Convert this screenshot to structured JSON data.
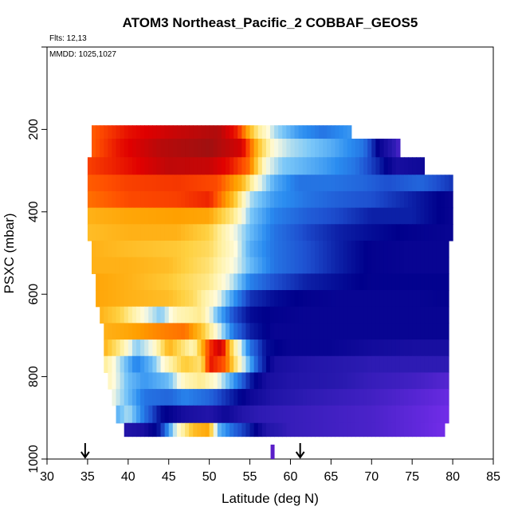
{
  "chart_data": {
    "type": "heatmap",
    "title": "ATOM3 Northeast_Pacific_2 COBBAF_GEOS5",
    "flights_note": "Flts: 12,13",
    "dates_note": "MMDD: 1025,1027",
    "xlabel": "Latitude (deg N)",
    "ylabel": "PSXC (mbar)",
    "xlim": [
      30,
      85
    ],
    "ylim": [
      1000,
      0
    ],
    "x_ticks": [
      "30",
      "35",
      "40",
      "45",
      "50",
      "55",
      "60",
      "65",
      "70",
      "75",
      "80",
      "85"
    ],
    "y_ticks": [
      "200",
      "400",
      "600",
      "800",
      "1000"
    ],
    "x_tick_values": [
      30,
      35,
      40,
      45,
      50,
      55,
      60,
      65,
      70,
      75,
      80,
      85
    ],
    "y_tick_values": [
      200,
      400,
      600,
      800,
      1000
    ],
    "grid": false,
    "colormap": [
      "#7b2ff0",
      "#2a1ab0",
      "#00008b",
      "#1e50d0",
      "#2a8cf0",
      "#7cc8f8",
      "#fffce0",
      "#fff0a0",
      "#ffd040",
      "#ffa000",
      "#ff5000",
      "#e00000",
      "#a01010"
    ],
    "colorscale_min": 0,
    "colorscale_max": 1,
    "rows": [
      {
        "p": 200,
        "x0": 35.5,
        "x1": 67.5,
        "stops": [
          [
            35.5,
            0.82
          ],
          [
            40,
            0.9
          ],
          [
            46,
            0.95
          ],
          [
            51,
            0.98
          ],
          [
            53.5,
            0.88
          ],
          [
            56,
            0.6
          ],
          [
            58,
            0.45
          ],
          [
            61,
            0.35
          ],
          [
            64,
            0.3
          ],
          [
            67.5,
            0.35
          ]
        ]
      },
      {
        "p": 245,
        "x0": 35.5,
        "x1": 73.5,
        "stops": [
          [
            35.5,
            0.82
          ],
          [
            39,
            0.9
          ],
          [
            44,
            0.97
          ],
          [
            50,
            1.0
          ],
          [
            54,
            0.93
          ],
          [
            56,
            0.7
          ],
          [
            58,
            0.5
          ],
          [
            60,
            0.45
          ],
          [
            65,
            0.38
          ],
          [
            69,
            0.3
          ],
          [
            71,
            0.15
          ],
          [
            73.5,
            0.05
          ]
        ]
      },
      {
        "p": 290,
        "x0": 35,
        "x1": 76.5,
        "stops": [
          [
            35,
            0.85
          ],
          [
            40,
            0.9
          ],
          [
            45,
            0.96
          ],
          [
            50,
            0.95
          ],
          [
            52.5,
            0.9
          ],
          [
            55,
            0.8
          ],
          [
            57,
            0.5
          ],
          [
            59,
            0.42
          ],
          [
            64,
            0.36
          ],
          [
            68,
            0.3
          ],
          [
            71,
            0.2
          ],
          [
            73,
            0.12
          ],
          [
            76.5,
            0.14
          ]
        ]
      },
      {
        "p": 330,
        "x0": 35,
        "x1": 80,
        "stops": [
          [
            35,
            0.82
          ],
          [
            40,
            0.85
          ],
          [
            46,
            0.86
          ],
          [
            51,
            0.84
          ],
          [
            54,
            0.72
          ],
          [
            56,
            0.5
          ],
          [
            58,
            0.38
          ],
          [
            61,
            0.3
          ],
          [
            65,
            0.3
          ],
          [
            69,
            0.28
          ],
          [
            72,
            0.25
          ],
          [
            76,
            0.28
          ],
          [
            80,
            0.22
          ]
        ]
      },
      {
        "p": 370,
        "x0": 35,
        "x1": 80,
        "stops": [
          [
            35,
            0.8
          ],
          [
            40,
            0.84
          ],
          [
            46,
            0.85
          ],
          [
            50,
            0.88
          ],
          [
            53,
            0.7
          ],
          [
            55,
            0.45
          ],
          [
            58,
            0.35
          ],
          [
            62,
            0.3
          ],
          [
            66,
            0.27
          ],
          [
            70,
            0.25
          ],
          [
            75,
            0.2
          ],
          [
            80,
            0.15
          ]
        ]
      },
      {
        "p": 410,
        "x0": 35,
        "x1": 80,
        "stops": [
          [
            35,
            0.72
          ],
          [
            40,
            0.74
          ],
          [
            46,
            0.75
          ],
          [
            50,
            0.74
          ],
          [
            53,
            0.6
          ],
          [
            55,
            0.42
          ],
          [
            58,
            0.32
          ],
          [
            62,
            0.27
          ],
          [
            66,
            0.24
          ],
          [
            70,
            0.2
          ],
          [
            75,
            0.2
          ],
          [
            80,
            0.15
          ]
        ]
      },
      {
        "p": 450,
        "x0": 35,
        "x1": 80,
        "stops": [
          [
            35,
            0.7
          ],
          [
            40,
            0.72
          ],
          [
            46,
            0.72
          ],
          [
            50,
            0.66
          ],
          [
            53,
            0.5
          ],
          [
            55,
            0.4
          ],
          [
            58,
            0.3
          ],
          [
            62,
            0.24
          ],
          [
            66,
            0.2
          ],
          [
            70,
            0.18
          ],
          [
            75,
            0.16
          ],
          [
            80,
            0.15
          ]
        ]
      },
      {
        "p": 490,
        "x0": 35.5,
        "x1": 79.5,
        "stops": [
          [
            35.5,
            0.72
          ],
          [
            40,
            0.7
          ],
          [
            46,
            0.68
          ],
          [
            50,
            0.64
          ],
          [
            53,
            0.52
          ],
          [
            55,
            0.38
          ],
          [
            58,
            0.3
          ],
          [
            62,
            0.25
          ],
          [
            66,
            0.2
          ],
          [
            70,
            0.16
          ],
          [
            75,
            0.15
          ],
          [
            79.5,
            0.15
          ]
        ]
      },
      {
        "p": 530,
        "x0": 35.5,
        "x1": 79.5,
        "stops": [
          [
            35.5,
            0.72
          ],
          [
            40,
            0.72
          ],
          [
            45,
            0.7
          ],
          [
            50,
            0.62
          ],
          [
            53,
            0.5
          ],
          [
            55,
            0.4
          ],
          [
            58,
            0.3
          ],
          [
            62,
            0.25
          ],
          [
            66,
            0.2
          ],
          [
            70,
            0.16
          ],
          [
            75,
            0.15
          ],
          [
            79.5,
            0.15
          ]
        ]
      },
      {
        "p": 570,
        "x0": 36,
        "x1": 79.5,
        "stops": [
          [
            36,
            0.74
          ],
          [
            40,
            0.72
          ],
          [
            45,
            0.68
          ],
          [
            50,
            0.6
          ],
          [
            53,
            0.45
          ],
          [
            55,
            0.32
          ],
          [
            58,
            0.25
          ],
          [
            62,
            0.2
          ],
          [
            66,
            0.18
          ],
          [
            70,
            0.16
          ],
          [
            75,
            0.16
          ],
          [
            79.5,
            0.16
          ]
        ]
      },
      {
        "p": 610,
        "x0": 36,
        "x1": 79.5,
        "stops": [
          [
            36,
            0.74
          ],
          [
            40,
            0.72
          ],
          [
            45,
            0.7
          ],
          [
            48,
            0.64
          ],
          [
            51,
            0.5
          ],
          [
            53,
            0.35
          ],
          [
            55,
            0.22
          ],
          [
            58,
            0.18
          ],
          [
            62,
            0.16
          ],
          [
            66,
            0.15
          ],
          [
            70,
            0.15
          ],
          [
            75,
            0.15
          ],
          [
            79.5,
            0.16
          ]
        ]
      },
      {
        "p": 650,
        "x0": 36.5,
        "x1": 79.5,
        "stops": [
          [
            36.5,
            0.72
          ],
          [
            39,
            0.66
          ],
          [
            42,
            0.5
          ],
          [
            44,
            0.42
          ],
          [
            46,
            0.55
          ],
          [
            49,
            0.6
          ],
          [
            51,
            0.4
          ],
          [
            53,
            0.25
          ],
          [
            55,
            0.18
          ],
          [
            58,
            0.16
          ],
          [
            62,
            0.15
          ],
          [
            66,
            0.15
          ],
          [
            70,
            0.15
          ],
          [
            75,
            0.15
          ],
          [
            79.5,
            0.15
          ]
        ]
      },
      {
        "p": 690,
        "x0": 37,
        "x1": 79.5,
        "stops": [
          [
            37,
            0.72
          ],
          [
            40,
            0.74
          ],
          [
            44,
            0.78
          ],
          [
            47,
            0.8
          ],
          [
            49,
            0.7
          ],
          [
            51,
            0.5
          ],
          [
            53,
            0.3
          ],
          [
            55,
            0.2
          ],
          [
            58,
            0.15
          ],
          [
            62,
            0.15
          ],
          [
            66,
            0.15
          ],
          [
            70,
            0.15
          ],
          [
            75,
            0.15
          ],
          [
            79.5,
            0.15
          ]
        ]
      },
      {
        "p": 730,
        "x0": 37,
        "x1": 79.5,
        "stops": [
          [
            37,
            0.72
          ],
          [
            39,
            0.6
          ],
          [
            41,
            0.42
          ],
          [
            43,
            0.5
          ],
          [
            45,
            0.72
          ],
          [
            48,
            0.55
          ],
          [
            50,
            0.86
          ],
          [
            51.5,
            0.95
          ],
          [
            53,
            0.6
          ],
          [
            55,
            0.3
          ],
          [
            57,
            0.18
          ],
          [
            60,
            0.15
          ],
          [
            65,
            0.15
          ],
          [
            70,
            0.13
          ],
          [
            75,
            0.12
          ],
          [
            79.5,
            0.12
          ]
        ]
      },
      {
        "p": 770,
        "x0": 37,
        "x1": 79.5,
        "stops": [
          [
            37,
            0.6
          ],
          [
            39,
            0.45
          ],
          [
            41,
            0.32
          ],
          [
            43,
            0.4
          ],
          [
            45,
            0.56
          ],
          [
            47,
            0.68
          ],
          [
            49,
            0.62
          ],
          [
            50,
            0.9
          ],
          [
            52,
            0.82
          ],
          [
            54,
            0.5
          ],
          [
            56,
            0.25
          ],
          [
            58,
            0.12
          ],
          [
            62,
            0.1
          ],
          [
            66,
            0.09
          ],
          [
            70,
            0.08
          ],
          [
            75,
            0.08
          ],
          [
            79.5,
            0.08
          ]
        ]
      },
      {
        "p": 810,
        "x0": 37.5,
        "x1": 79.5,
        "stops": [
          [
            37.5,
            0.55
          ],
          [
            40,
            0.4
          ],
          [
            42,
            0.35
          ],
          [
            45,
            0.4
          ],
          [
            47,
            0.55
          ],
          [
            49,
            0.6
          ],
          [
            51,
            0.5
          ],
          [
            53,
            0.35
          ],
          [
            55,
            0.2
          ],
          [
            57,
            0.12
          ],
          [
            60,
            0.1
          ],
          [
            65,
            0.09
          ],
          [
            70,
            0.07
          ],
          [
            75,
            0.06
          ],
          [
            79.5,
            0.04
          ]
        ]
      },
      {
        "p": 850,
        "x0": 38,
        "x1": 79.5,
        "stops": [
          [
            38,
            0.5
          ],
          [
            40,
            0.4
          ],
          [
            42,
            0.3
          ],
          [
            45,
            0.28
          ],
          [
            47,
            0.32
          ],
          [
            50,
            0.28
          ],
          [
            52,
            0.22
          ],
          [
            55,
            0.14
          ],
          [
            58,
            0.1
          ],
          [
            62,
            0.08
          ],
          [
            66,
            0.07
          ],
          [
            70,
            0.06
          ],
          [
            75,
            0.04
          ],
          [
            79.5,
            0.02
          ]
        ]
      },
      {
        "p": 890,
        "x0": 38.5,
        "x1": 79.5,
        "stops": [
          [
            38.5,
            0.38
          ],
          [
            40,
            0.45
          ],
          [
            42,
            0.3
          ],
          [
            44,
            0.18
          ],
          [
            47,
            0.12
          ],
          [
            50,
            0.1
          ],
          [
            52,
            0.14
          ],
          [
            54,
            0.1
          ],
          [
            56,
            0.08
          ],
          [
            60,
            0.07
          ],
          [
            65,
            0.06
          ],
          [
            70,
            0.05
          ],
          [
            75,
            0.03
          ],
          [
            79.5,
            0.01
          ]
        ]
      },
      {
        "p": 935,
        "x0": 39.5,
        "x1": 79,
        "stops": [
          [
            39.5,
            0.1
          ],
          [
            42,
            0.12
          ],
          [
            44,
            0.2
          ],
          [
            46,
            0.5
          ],
          [
            48,
            0.7
          ],
          [
            50,
            0.74
          ],
          [
            51,
            0.4
          ],
          [
            53,
            0.28
          ],
          [
            55,
            0.2
          ],
          [
            57,
            0.1
          ],
          [
            60,
            0.07
          ],
          [
            65,
            0.06
          ],
          [
            70,
            0.05
          ],
          [
            75,
            0.03
          ],
          [
            79,
            0.01
          ]
        ]
      }
    ],
    "arrows_lat": [
      34.7,
      61.2
    ],
    "bar_lat": 57.8
  }
}
